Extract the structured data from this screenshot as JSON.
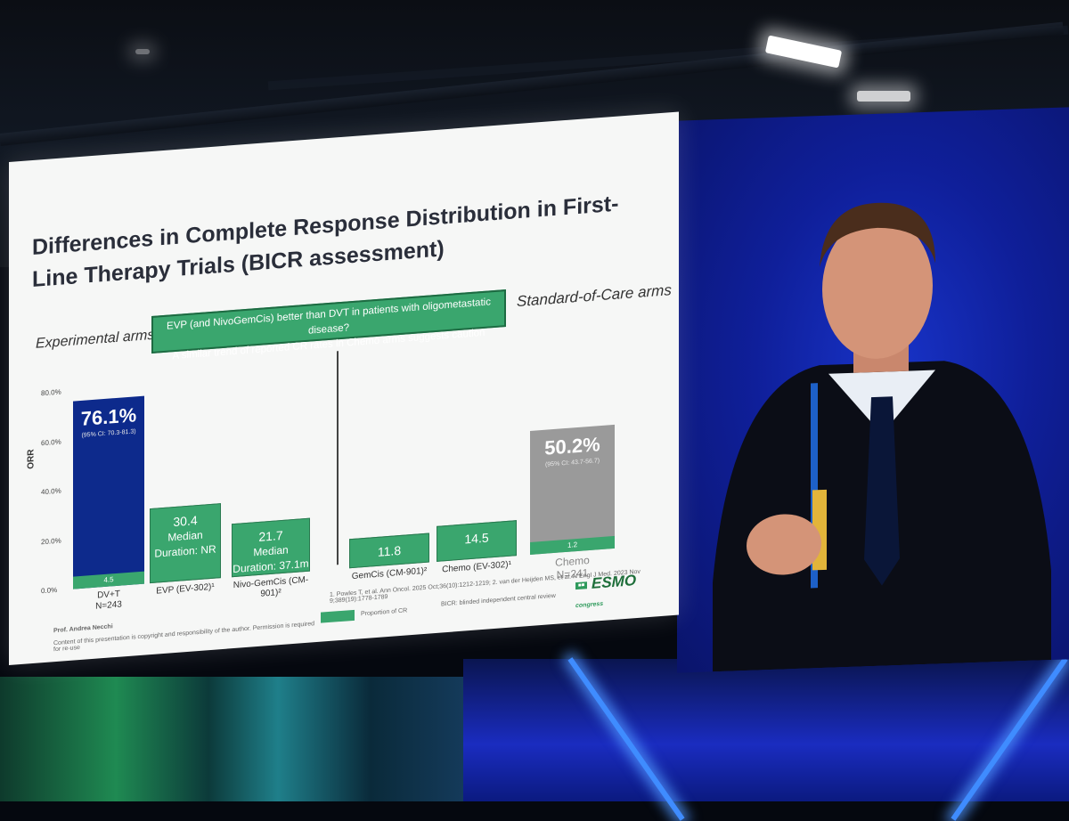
{
  "slide": {
    "title": "Differences in Complete Response Distribution in First-Line Therapy Trials (BICR assessment)",
    "experimental_label": "Experimental arms",
    "soc_label": "Standard-of-Care arms",
    "callout_line1": "EVP (and NivoGemCis) better than DVT in patients with oligometastatic disease?",
    "callout_line2": "A similar trend of reported CR rates in Chemo arms suggests caution",
    "y_axis_label": "ORR",
    "author": "Prof. Andrea Necchi",
    "copyright": "Content of this presentation is copyright and responsibility of the author. Permission is required for re-use",
    "references": "1. Powles T, et al. Ann Oncol. 2025 Oct;36(10):1212-1219; 2. van der Heijden MS, et al. N Engl J Med. 2023 Nov 9;389(19):1778-1789",
    "legend_label": "Proportion of CR",
    "bicr_note": "BICR: blinded independent central review",
    "logo_text": "ESMO",
    "logo_sub": "congress"
  },
  "chart_data": {
    "type": "bar",
    "ylabel": "ORR",
    "ylim": [
      0,
      80
    ],
    "yticks": [
      "0.0%",
      "20.0%",
      "40.0%",
      "60.0%",
      "80.0%"
    ],
    "bars": [
      {
        "arm": "DV+T",
        "n": "N=243",
        "orr": 76.1,
        "orr_label": "76.1%",
        "ci": "(95% CI: 70.3-81.3)",
        "cr": 4.5,
        "cr_label": "4.5"
      },
      {
        "arm": "EVP (EV-302)¹",
        "value": 30.4,
        "value_label": "30.4",
        "text": "Median Duration: NR"
      },
      {
        "arm": "Nivo-GemCis (CM-901)²",
        "value": 21.7,
        "value_label": "21.7",
        "text": "Median Duration: 37.1m"
      },
      {
        "arm": "GemCis (CM-901)²",
        "value": 11.8,
        "value_label": "11.8"
      },
      {
        "arm": "Chemo (EV-302)¹",
        "value": 14.5,
        "value_label": "14.5"
      },
      {
        "arm": "Chemo",
        "n": "N=241",
        "orr": 50.2,
        "orr_label": "50.2%",
        "ci": "(95% CI: 43.7-56.7)",
        "cr": 1.2,
        "cr_label": "1.2"
      }
    ]
  }
}
